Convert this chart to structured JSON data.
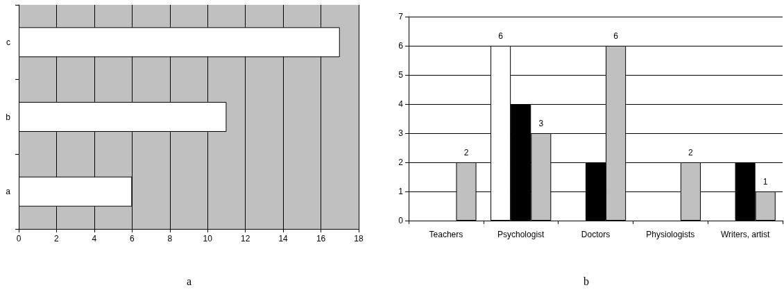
{
  "chart_data": [
    {
      "type": "bar",
      "title": "a",
      "orientation": "horizontal",
      "categories": [
        "c",
        "b",
        "a"
      ],
      "values": [
        17,
        11,
        6
      ],
      "color": "#ffffff",
      "xlim": [
        0,
        18
      ],
      "xticks": [
        0,
        2,
        4,
        6,
        8,
        10,
        12,
        14,
        16,
        18
      ],
      "grid": "x"
    },
    {
      "type": "bar",
      "title": "b",
      "categories": [
        "Teachers",
        "Psychologist",
        "Doctors",
        "Physiologists",
        "Writers, artist"
      ],
      "series": [
        {
          "color": "#ffffff",
          "values": [
            null,
            6,
            null,
            null,
            null
          ],
          "value_labels": [
            null,
            "6",
            null,
            null,
            null
          ]
        },
        {
          "color": "#000000",
          "values": [
            null,
            4,
            2,
            null,
            2
          ]
        },
        {
          "color": "#c0c0c0",
          "values": [
            2,
            3,
            6,
            2,
            1
          ],
          "value_labels": [
            "2",
            "3",
            "6",
            "2",
            "1"
          ]
        }
      ],
      "ylim": [
        0,
        7
      ],
      "yticks": [
        0,
        1,
        2,
        3,
        4,
        5,
        6,
        7
      ],
      "grid": "y"
    }
  ]
}
